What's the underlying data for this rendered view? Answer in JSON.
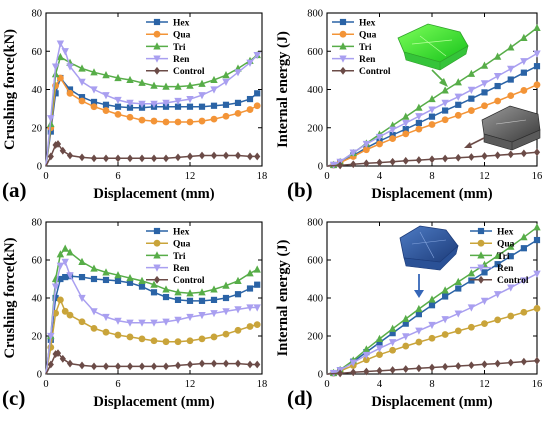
{
  "colors": {
    "hex": "#2a63a6",
    "qua_a": "#f39437",
    "qua_c": "#c9a43a",
    "tri": "#57ad48",
    "ren": "#a99ff0",
    "control": "#6b4b47"
  },
  "chart_data": [
    {
      "id": "a",
      "panel_label": "(a)",
      "type": "line",
      "xlabel": "Displacement (mm)",
      "ylabel": "Crushing force(kN)",
      "xlim": [
        0,
        18
      ],
      "ylim": [
        0,
        80
      ],
      "xticks": [
        0,
        6,
        12,
        18
      ],
      "yticks": [
        0,
        20,
        40,
        60,
        80
      ],
      "legend_position": "top-right",
      "series": [
        {
          "name": "Hex",
          "color_key": "hex",
          "marker": "square",
          "x": [
            0,
            0.4,
            0.8,
            1.2,
            2,
            3,
            4,
            5,
            6,
            7,
            8,
            9,
            10,
            11,
            12,
            13,
            14,
            15,
            16,
            17,
            17.6
          ],
          "y": [
            0,
            18,
            38,
            46,
            40,
            36,
            33.5,
            32,
            31,
            30.5,
            30.5,
            31,
            31,
            31,
            31,
            31,
            31.5,
            32,
            33,
            35,
            38
          ]
        },
        {
          "name": "Qua",
          "color_key": "qua_a",
          "marker": "circle",
          "x": [
            0,
            0.4,
            0.8,
            1.2,
            2,
            3,
            4,
            5,
            6,
            7,
            8,
            9,
            10,
            11,
            12,
            13,
            14,
            15,
            16,
            17,
            17.6
          ],
          "y": [
            0,
            20,
            42,
            46,
            38,
            34,
            31,
            29,
            27,
            25.5,
            24,
            23.5,
            23,
            23,
            23,
            23.5,
            24.5,
            26,
            27.5,
            29.5,
            31.5
          ]
        },
        {
          "name": "Tri",
          "color_key": "tri",
          "marker": "triangle",
          "x": [
            0,
            0.4,
            0.8,
            1.2,
            2,
            3,
            4,
            5,
            6,
            7,
            8,
            9,
            10,
            11,
            12,
            13,
            14,
            15,
            16,
            17,
            17.6
          ],
          "y": [
            0,
            22,
            48,
            57,
            54,
            51,
            49,
            47.5,
            46,
            45,
            43.5,
            42,
            41.5,
            41.5,
            42,
            43,
            45,
            47.5,
            51,
            55,
            58
          ]
        },
        {
          "name": "Ren",
          "color_key": "ren",
          "marker": "triangle-down",
          "x": [
            0,
            0.4,
            0.8,
            1.2,
            1.6,
            2,
            3,
            4,
            5,
            6,
            7,
            8,
            9,
            10,
            11,
            12,
            13,
            14,
            15,
            16,
            17,
            17.6
          ],
          "y": [
            0,
            25,
            52,
            64,
            60,
            52,
            44,
            40,
            37,
            34.5,
            33,
            32.5,
            32.5,
            33,
            34,
            35,
            37,
            40,
            44,
            49,
            54,
            58
          ]
        },
        {
          "name": "Control",
          "color_key": "control",
          "marker": "diamond",
          "x": [
            0,
            0.4,
            0.8,
            1.0,
            1.4,
            2,
            3,
            4,
            5,
            6,
            7,
            8,
            9,
            10,
            11,
            12,
            13,
            14,
            15,
            16,
            17,
            17.6
          ],
          "y": [
            0,
            5,
            11,
            11.5,
            8,
            5.5,
            4.5,
            4,
            4,
            4,
            4,
            4,
            4,
            4,
            4.5,
            5,
            5.5,
            5.5,
            5.5,
            5.5,
            5,
            5
          ]
        }
      ]
    },
    {
      "id": "b",
      "panel_label": "(b)",
      "type": "line",
      "xlabel": "Displacement (mm)",
      "ylabel": "Internal energy (J)",
      "xlim": [
        0,
        16
      ],
      "ylim": [
        0,
        800
      ],
      "xticks": [
        0,
        4,
        8,
        12,
        16
      ],
      "yticks": [
        0,
        200,
        400,
        600,
        800
      ],
      "legend_position": "top-left",
      "series": [
        {
          "name": "Hex",
          "color_key": "hex",
          "marker": "square",
          "x": [
            0,
            0.5,
            1,
            2,
            3,
            4,
            5,
            6,
            7,
            8,
            9,
            10,
            11,
            12,
            13,
            14,
            15,
            16
          ],
          "y": [
            0,
            5,
            18,
            55,
            95,
            130,
            162,
            193,
            225,
            258,
            290,
            320,
            352,
            385,
            418,
            452,
            488,
            522
          ]
        },
        {
          "name": "Qua",
          "color_key": "qua_a",
          "marker": "circle",
          "x": [
            0,
            0.5,
            1,
            2,
            3,
            4,
            5,
            6,
            7,
            8,
            9,
            10,
            11,
            12,
            13,
            14,
            15,
            16
          ],
          "y": [
            0,
            5,
            17,
            50,
            85,
            115,
            143,
            168,
            193,
            217,
            242,
            265,
            290,
            315,
            340,
            368,
            395,
            425
          ]
        },
        {
          "name": "Tri",
          "color_key": "tri",
          "marker": "triangle",
          "x": [
            0,
            0.5,
            1,
            2,
            3,
            4,
            5,
            6,
            7,
            8,
            9,
            10,
            11,
            12,
            13,
            14,
            15,
            16
          ],
          "y": [
            0,
            6,
            22,
            68,
            118,
            165,
            212,
            258,
            305,
            350,
            395,
            438,
            482,
            525,
            572,
            620,
            670,
            722
          ]
        },
        {
          "name": "Ren",
          "color_key": "ren",
          "marker": "triangle-down",
          "x": [
            0,
            0.5,
            1,
            2,
            3,
            4,
            5,
            6,
            7,
            8,
            9,
            10,
            11,
            12,
            13,
            14,
            15,
            16
          ],
          "y": [
            0,
            6,
            22,
            70,
            115,
            152,
            190,
            225,
            260,
            295,
            330,
            362,
            398,
            432,
            470,
            508,
            548,
            588
          ]
        },
        {
          "name": "Control",
          "color_key": "control",
          "marker": "diamond",
          "x": [
            0,
            1,
            2,
            3,
            4,
            5,
            6,
            7,
            8,
            9,
            10,
            11,
            12,
            13,
            14,
            15,
            16
          ],
          "y": [
            0,
            3,
            9,
            14,
            18,
            22,
            27,
            31,
            35,
            39,
            43,
            47,
            52,
            56,
            61,
            66,
            72
          ]
        }
      ]
    },
    {
      "id": "c",
      "panel_label": "(c)",
      "type": "line",
      "xlabel": "Displacement (mm)",
      "ylabel": "Crushing force(kN)",
      "xlim": [
        0,
        18
      ],
      "ylim": [
        0,
        80
      ],
      "xticks": [
        0,
        6,
        12,
        18
      ],
      "yticks": [
        0,
        20,
        40,
        60,
        80
      ],
      "legend_position": "top-right",
      "series": [
        {
          "name": "Hex",
          "color_key": "hex",
          "marker": "square",
          "x": [
            0,
            0.4,
            0.8,
            1.2,
            1.6,
            2,
            3,
            4,
            5,
            6,
            7,
            8,
            9,
            10,
            11,
            12,
            13,
            14,
            15,
            16,
            17,
            17.6
          ],
          "y": [
            0,
            18,
            40,
            50,
            51,
            51.5,
            51,
            50,
            49.5,
            49,
            48,
            46,
            43,
            40.5,
            39,
            38.5,
            38.5,
            39,
            40,
            42,
            45,
            47
          ]
        },
        {
          "name": "Qua",
          "color_key": "qua_c",
          "marker": "circle",
          "x": [
            0,
            0.4,
            0.8,
            1.2,
            1.6,
            2,
            3,
            4,
            5,
            6,
            7,
            8,
            9,
            10,
            11,
            12,
            13,
            14,
            15,
            16,
            17,
            17.6
          ],
          "y": [
            0,
            14,
            32,
            39,
            33,
            31,
            27.5,
            24,
            22,
            20.5,
            19.5,
            18.5,
            17.5,
            17,
            17,
            17.5,
            18.5,
            19.5,
            21,
            23,
            25,
            26
          ]
        },
        {
          "name": "Tri",
          "color_key": "tri",
          "marker": "triangle",
          "x": [
            0,
            0.4,
            0.8,
            1.2,
            1.6,
            2,
            3,
            4,
            5,
            6,
            7,
            8,
            9,
            10,
            11,
            12,
            13,
            14,
            15,
            16,
            17,
            17.6
          ],
          "y": [
            0,
            20,
            50,
            63,
            66,
            64,
            59,
            55.5,
            53.5,
            52,
            50.5,
            49,
            47,
            44.5,
            43,
            42.5,
            43,
            44.5,
            46.5,
            49,
            53,
            55
          ]
        },
        {
          "name": "Ren",
          "color_key": "ren",
          "marker": "triangle-down",
          "x": [
            0,
            0.4,
            0.8,
            1.2,
            1.6,
            2,
            3,
            4,
            5,
            6,
            7,
            8,
            9,
            10,
            11,
            12,
            13,
            14,
            15,
            16,
            17,
            17.6
          ],
          "y": [
            0,
            20,
            46,
            57,
            59,
            52,
            40,
            33,
            30,
            28,
            27,
            27,
            27,
            27.5,
            28.5,
            30,
            31,
            32,
            33,
            34,
            35,
            35
          ]
        },
        {
          "name": "Control",
          "color_key": "control",
          "marker": "diamond",
          "x": [
            0,
            0.4,
            0.8,
            1.0,
            1.4,
            2,
            3,
            4,
            5,
            6,
            7,
            8,
            9,
            10,
            11,
            12,
            13,
            14,
            15,
            16,
            17,
            17.6
          ],
          "y": [
            0,
            5,
            10.5,
            11,
            8,
            5.5,
            4.5,
            4,
            4,
            4,
            4,
            4,
            4,
            4,
            4.5,
            5,
            5.5,
            5.5,
            5.5,
            5.5,
            5,
            5
          ]
        }
      ]
    },
    {
      "id": "d",
      "panel_label": "(d)",
      "type": "line",
      "xlabel": "Displacement (mm)",
      "ylabel": "Internal energy (J)",
      "xlim": [
        0,
        16
      ],
      "ylim": [
        0,
        800
      ],
      "xticks": [
        0,
        4,
        8,
        12,
        16
      ],
      "yticks": [
        0,
        200,
        400,
        600,
        800
      ],
      "legend_position": "top-right",
      "series": [
        {
          "name": "Hex",
          "color_key": "hex",
          "marker": "square",
          "x": [
            0,
            0.5,
            1,
            2,
            3,
            4,
            5,
            6,
            7,
            8,
            9,
            10,
            11,
            12,
            13,
            14,
            15,
            16
          ],
          "y": [
            0,
            5,
            20,
            65,
            115,
            165,
            215,
            265,
            315,
            362,
            408,
            450,
            492,
            535,
            578,
            620,
            662,
            705
          ]
        },
        {
          "name": "Qua",
          "color_key": "qua_c",
          "marker": "circle",
          "x": [
            0,
            0.5,
            1,
            2,
            3,
            4,
            5,
            6,
            7,
            8,
            9,
            10,
            11,
            12,
            13,
            14,
            15,
            16
          ],
          "y": [
            0,
            4,
            15,
            45,
            75,
            102,
            125,
            147,
            168,
            188,
            208,
            227,
            246,
            265,
            285,
            305,
            325,
            345
          ]
        },
        {
          "name": "Tri",
          "color_key": "tri",
          "marker": "triangle",
          "x": [
            0,
            0.5,
            1,
            2,
            3,
            4,
            5,
            6,
            7,
            8,
            9,
            10,
            11,
            12,
            13,
            14,
            15,
            16
          ],
          "y": [
            0,
            6,
            22,
            72,
            130,
            185,
            238,
            290,
            342,
            392,
            440,
            485,
            530,
            575,
            622,
            670,
            720,
            772
          ]
        },
        {
          "name": "Ren",
          "color_key": "ren",
          "marker": "triangle-down",
          "x": [
            0,
            0.5,
            1,
            2,
            3,
            4,
            5,
            6,
            7,
            8,
            9,
            10,
            11,
            12,
            13,
            14,
            15,
            16
          ],
          "y": [
            0,
            5,
            20,
            60,
            100,
            135,
            167,
            198,
            228,
            258,
            288,
            318,
            350,
            385,
            420,
            455,
            492,
            528
          ]
        },
        {
          "name": "Control",
          "color_key": "control",
          "marker": "diamond",
          "x": [
            0,
            1,
            2,
            3,
            4,
            5,
            6,
            7,
            8,
            9,
            10,
            11,
            12,
            13,
            14,
            15,
            16
          ],
          "y": [
            0,
            3,
            9,
            13,
            17,
            21,
            26,
            30,
            34,
            38,
            42,
            46,
            51,
            55,
            60,
            65,
            70
          ]
        }
      ]
    }
  ]
}
